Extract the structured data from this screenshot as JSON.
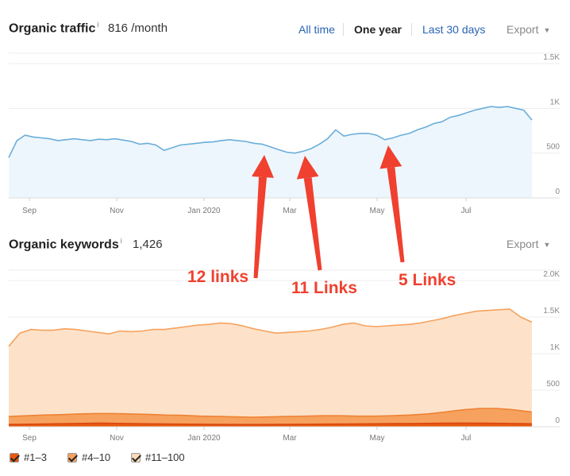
{
  "traffic": {
    "title": "Organic traffic",
    "info": "i",
    "value": "816 /month",
    "ranges": [
      "All time",
      "One year",
      "Last 30 days"
    ],
    "active_range": "One year",
    "export_label": "Export"
  },
  "keywords": {
    "title": "Organic keywords",
    "info": "i",
    "value": "1,426",
    "export_label": "Export"
  },
  "annotations": [
    "12 links",
    "11 Links",
    "5 Links"
  ],
  "legend": [
    {
      "label": "#1–3",
      "color": "#e8590c"
    },
    {
      "label": "#4–10",
      "color": "#f6a25e"
    },
    {
      "label": "#11–100",
      "color": "#fcd8b8"
    }
  ],
  "colors": {
    "traffic_line": "#6aaed8",
    "traffic_fill": "#edf6fc",
    "arrow": "#f0402f"
  },
  "chart_data": [
    {
      "type": "area",
      "title": "Organic traffic",
      "x_ticks": [
        "Sep",
        "Nov",
        "Jan 2020",
        "Mar",
        "May",
        "Jul"
      ],
      "y_ticks": [
        "0",
        "500",
        "1K",
        "1.5K"
      ],
      "ylim": [
        0,
        1500
      ],
      "grid": true,
      "series": [
        {
          "values": [
            450,
            640,
            700,
            680,
            670,
            660,
            640,
            650,
            660,
            650,
            640,
            655,
            650,
            660,
            645,
            630,
            600,
            610,
            590,
            530,
            560,
            590,
            600,
            610,
            620,
            625,
            640,
            650,
            640,
            630,
            610,
            600,
            570,
            540,
            510,
            500,
            520,
            550,
            600,
            660,
            760,
            690,
            710,
            720,
            720,
            700,
            650,
            670,
            700,
            720,
            760,
            790,
            830,
            850,
            900,
            920,
            950,
            980,
            1000,
            1020,
            1010,
            1020,
            1000,
            980,
            870
          ]
        }
      ]
    },
    {
      "type": "area",
      "title": "Organic keywords",
      "x_ticks": [
        "Sep",
        "Nov",
        "Jan 2020",
        "Mar",
        "May",
        "Jul"
      ],
      "y_ticks": [
        "0",
        "500",
        "1K",
        "1.5K",
        "2.0K"
      ],
      "ylim": [
        0,
        2000
      ],
      "grid": true,
      "series": [
        {
          "name": "#11–100",
          "values": [
            1100,
            1280,
            1330,
            1320,
            1320,
            1340,
            1330,
            1310,
            1290,
            1270,
            1310,
            1300,
            1310,
            1330,
            1330,
            1350,
            1370,
            1390,
            1400,
            1420,
            1410,
            1380,
            1340,
            1310,
            1280,
            1290,
            1300,
            1310,
            1330,
            1360,
            1400,
            1420,
            1380,
            1370,
            1380,
            1390,
            1400,
            1420,
            1450,
            1480,
            1520,
            1550,
            1580,
            1590,
            1600,
            1610,
            1500,
            1430
          ]
        },
        {
          "name": "#4–10",
          "values": [
            140,
            150,
            160,
            165,
            175,
            180,
            180,
            175,
            170,
            160,
            155,
            145,
            140,
            135,
            130,
            135,
            140,
            145,
            150,
            150,
            145,
            145,
            150,
            160,
            175,
            200,
            230,
            250,
            250,
            230,
            200
          ]
        },
        {
          "name": "#1–3",
          "values": [
            30,
            35,
            40,
            45,
            50,
            45,
            40,
            38,
            35,
            32,
            30,
            30,
            32,
            34,
            36,
            38,
            40,
            42,
            45,
            48,
            50,
            48,
            45,
            40
          ]
        }
      ]
    }
  ]
}
